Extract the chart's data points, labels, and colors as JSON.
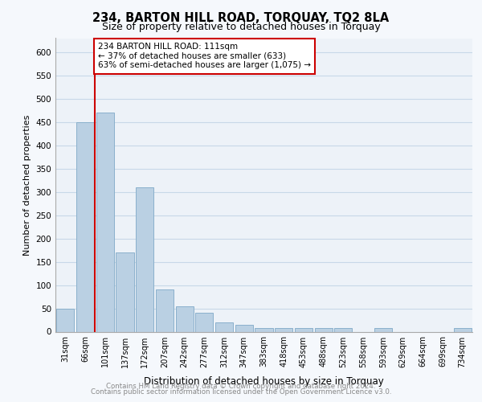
{
  "title1": "234, BARTON HILL ROAD, TORQUAY, TQ2 8LA",
  "title2": "Size of property relative to detached houses in Torquay",
  "xlabel": "Distribution of detached houses by size in Torquay",
  "ylabel": "Number of detached properties",
  "footnote1": "Contains HM Land Registry data © Crown copyright and database right 2024.",
  "footnote2": "Contains public sector information licensed under the Open Government Licence v3.0.",
  "annotation_line1": "234 BARTON HILL ROAD: 111sqm",
  "annotation_line2": "← 37% of detached houses are smaller (633)",
  "annotation_line3": "63% of semi-detached houses are larger (1,075) →",
  "bar_color": "#bad0e3",
  "bar_edge_color": "#8ab0cc",
  "vline_color": "#cc0000",
  "annotation_box_color": "#ffffff",
  "annotation_box_edge": "#cc0000",
  "background_color": "#f5f8fc",
  "plot_bg_color": "#edf2f8",
  "grid_color": "#c8d8e8",
  "categories": [
    "31sqm",
    "66sqm",
    "101sqm",
    "137sqm",
    "172sqm",
    "207sqm",
    "242sqm",
    "277sqm",
    "312sqm",
    "347sqm",
    "383sqm",
    "418sqm",
    "453sqm",
    "488sqm",
    "523sqm",
    "558sqm",
    "593sqm",
    "629sqm",
    "664sqm",
    "699sqm",
    "734sqm"
  ],
  "values": [
    50,
    450,
    470,
    170,
    310,
    90,
    55,
    40,
    20,
    15,
    8,
    8,
    8,
    8,
    8,
    0,
    8,
    0,
    0,
    0,
    8
  ],
  "ylim": [
    0,
    630
  ],
  "yticks": [
    0,
    50,
    100,
    150,
    200,
    250,
    300,
    350,
    400,
    450,
    500,
    550,
    600
  ],
  "vline_bin_index": 2,
  "title1_fontsize": 10.5,
  "title2_fontsize": 9
}
